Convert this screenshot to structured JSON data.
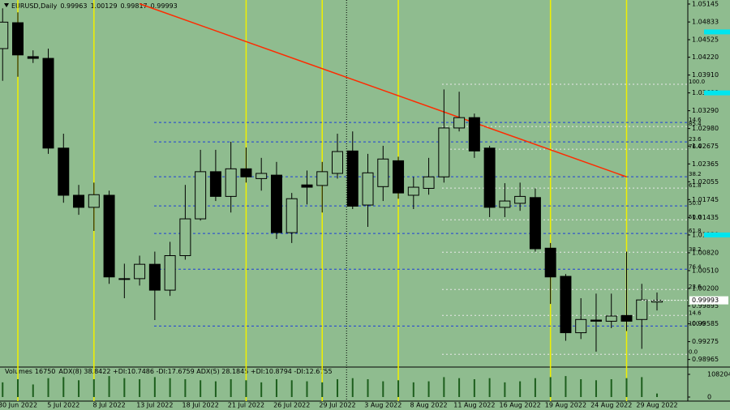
{
  "chart_data": {
    "type": "candlestick",
    "title": "EURUSD,Daily",
    "categories": [
      null,
      "30 Jun 2022",
      null,
      null,
      "5 Jul 2022",
      null,
      null,
      "8 Jul 2022",
      null,
      null,
      "13 Jul 2022",
      null,
      null,
      "18 Jul 2022",
      null,
      null,
      "21 Jul 2022",
      null,
      null,
      "26 Jul 2022",
      null,
      null,
      "29 Jul 2022",
      null,
      null,
      "3 Aug 2022",
      null,
      null,
      "8 Aug 2022",
      null,
      null,
      "11 Aug 2022",
      null,
      null,
      "16 Aug 2022",
      null,
      null,
      "19 Aug 2022",
      null,
      null,
      "24 Aug 2022",
      null,
      null,
      "29 Aug 2022"
    ],
    "open": [
      1.0437,
      1.0482,
      1.0423,
      1.042,
      1.0264,
      1.0182,
      1.0161,
      1.0182,
      1.0037,
      1.0037,
      1.0062,
      1.0017,
      1.0077,
      1.0141,
      1.0223,
      1.018,
      1.0228,
      1.0211,
      1.0217,
      1.0117,
      1.02,
      1.0199,
      1.022,
      1.0259,
      1.0165,
      1.0197,
      1.0242,
      1.0182,
      1.0194,
      1.0214,
      1.0299,
      1.0317,
      1.0264,
      1.0161,
      1.0168,
      1.0178,
      1.009,
      1.0041,
      0.9943,
      0.9965,
      0.9963,
      0.9973,
      0.9966,
      0.99963
    ],
    "high": [
      1.0507,
      1.05,
      1.0434,
      1.0437,
      1.0289,
      1.02,
      1.0204,
      1.019,
      1.0063,
      1.0077,
      1.0084,
      1.0101,
      1.02,
      1.0261,
      1.0261,
      1.0275,
      1.0265,
      1.0247,
      1.024,
      1.0186,
      1.0225,
      1.024,
      1.0289,
      1.0293,
      1.0254,
      1.0268,
      1.0249,
      1.0214,
      1.0247,
      1.0366,
      1.0362,
      1.0324,
      1.0268,
      1.0203,
      1.0204,
      1.0194,
      1.0099,
      1.0045,
      1.0003,
      1.0011,
      1.0011,
      1.0084,
      1.0028,
      1.00129
    ],
    "low": [
      1.0381,
      1.0388,
      1.0412,
      1.0254,
      1.0169,
      1.0148,
      1.012,
      1.0028,
      1.0003,
      1.0025,
      0.9965,
      1.0007,
      1.007,
      1.0138,
      1.0172,
      1.0152,
      1.0204,
      1.019,
      1.0106,
      1.0099,
      1.0166,
      1.0152,
      1.0211,
      1.0158,
      1.0127,
      1.0172,
      1.0176,
      1.0158,
      1.0183,
      1.0204,
      1.0293,
      1.0247,
      1.0144,
      1.0144,
      1.0155,
      1.0084,
      0.9993,
      0.9929,
      0.9932,
      0.991,
      0.9951,
      0.9946,
      0.9915,
      0.99817
    ],
    "close": [
      1.0483,
      1.0426,
      1.042,
      1.0264,
      1.0182,
      1.0161,
      1.0183,
      1.004,
      1.0037,
      1.0062,
      1.0017,
      1.0077,
      1.0141,
      1.0223,
      1.018,
      1.0228,
      1.0214,
      1.022,
      1.0117,
      1.0176,
      1.0196,
      1.0223,
      1.0258,
      1.0163,
      1.0221,
      1.0245,
      1.0186,
      1.0196,
      1.0214,
      1.0299,
      1.0317,
      1.0259,
      1.0161,
      1.0172,
      1.018,
      1.0089,
      1.004,
      0.9943,
      0.9966,
      0.9963,
      0.9972,
      0.9963,
      1.0,
      0.99993
    ],
    "up_color": "#8fbc8f",
    "down_color": "#000000",
    "ylim": [
      0.98847,
      1.05215
    ],
    "yticks": [
      1.05145,
      1.04833,
      1.04525,
      {
        "value": 1.0422,
        "label": "1.04220"
      },
      {
        "value": 1.0391,
        "label": "1.03910"
      },
      {
        "value": 1.036,
        "label": "1.03600"
      },
      {
        "value": 1.0329,
        "label": "1.03290"
      },
      {
        "value": 1.0298,
        "label": "1.02980"
      },
      1.02675,
      1.02365,
      1.02055,
      1.01745,
      1.01435,
      {
        "value": 1.0113,
        "label": "1.01130"
      },
      {
        "value": 1.0082,
        "label": "1.00820"
      },
      {
        "value": 1.0051,
        "label": "1.00510"
      },
      {
        "value": 1.002,
        "label": "1.00200"
      },
      0.99895,
      0.99585,
      0.99275,
      0.98965
    ],
    "levels": [
      {
        "value": 1.0466,
        "color": "#00e5ee"
      },
      {
        "value": 1.036,
        "color": "#00e5ee"
      },
      {
        "value": 1.0113,
        "color": "#00e5ee"
      }
    ],
    "fib_levels": [
      {
        "label": "100.0",
        "value": 1.03749,
        "color": "#e8e8e8"
      },
      {
        "label": "14.6",
        "value": 1.03086,
        "color": "#1f3fd8"
      },
      {
        "label": "85.4",
        "value": 1.03016,
        "color": "#e8e8e8"
      },
      {
        "label": "23.6",
        "value": 1.02748,
        "color": "#1f3fd8"
      },
      {
        "label": "76.4",
        "value": 1.02621,
        "color": "#e8e8e8"
      },
      {
        "label": "38.2",
        "value": 1.02142,
        "color": "#1f3fd8"
      },
      {
        "label": "61.8",
        "value": 1.01944,
        "color": "#e8e8e8"
      },
      {
        "label": "50.0",
        "value": 1.01634,
        "color": "#1f3fd8"
      },
      {
        "label": "50.0",
        "value": 1.01394,
        "color": "#e8e8e8"
      },
      {
        "label": "61.8",
        "value": 1.01155,
        "color": "#1f3fd8"
      },
      {
        "label": "38.2",
        "value": 1.0083,
        "color": "#e8e8e8"
      },
      {
        "label": "76.4",
        "value": 1.00534,
        "color": "#1f3fd8"
      },
      {
        "label": "23.6",
        "value": 1.00182,
        "color": "#e8e8e8"
      },
      {
        "label": "14.6",
        "value": 0.99731,
        "color": "#e8e8e8"
      },
      {
        "label": "100.0",
        "value": 0.99547,
        "color": "#1f3fd8"
      },
      {
        "label": "0.0",
        "value": 0.99054,
        "color": "#e8e8e8"
      }
    ],
    "trendline": {
      "color": "#ff2a00",
      "x": [
        9,
        41
      ],
      "values": [
        1.0515,
        1.0214
      ]
    },
    "volume_label": "Volumes",
    "adx_label": "ADX(8) 38.8422 +DI:10.7486 -DI:17.6759 ADX(5) 28.1845 +DI:10.8794 -DI:12.6755",
    "volumes": [
      70000,
      85000,
      60000,
      90000,
      95000,
      80000,
      85000,
      100000,
      90000,
      85000,
      95000,
      90000,
      85000,
      80000,
      75000,
      85000,
      80000,
      70000,
      85000,
      80000,
      75000,
      70000,
      85000,
      90000,
      85000,
      75000,
      80000,
      70000,
      75000,
      95000,
      90000,
      85000,
      90000,
      70000,
      75000,
      90000,
      95000,
      100000,
      85000,
      80000,
      85000,
      90000,
      95000,
      16750
    ],
    "volume_color": "#1d5e1d",
    "volume_ylim": [
      0,
      108204
    ],
    "volume_yticks": [
      108204,
      0
    ]
  }
}
